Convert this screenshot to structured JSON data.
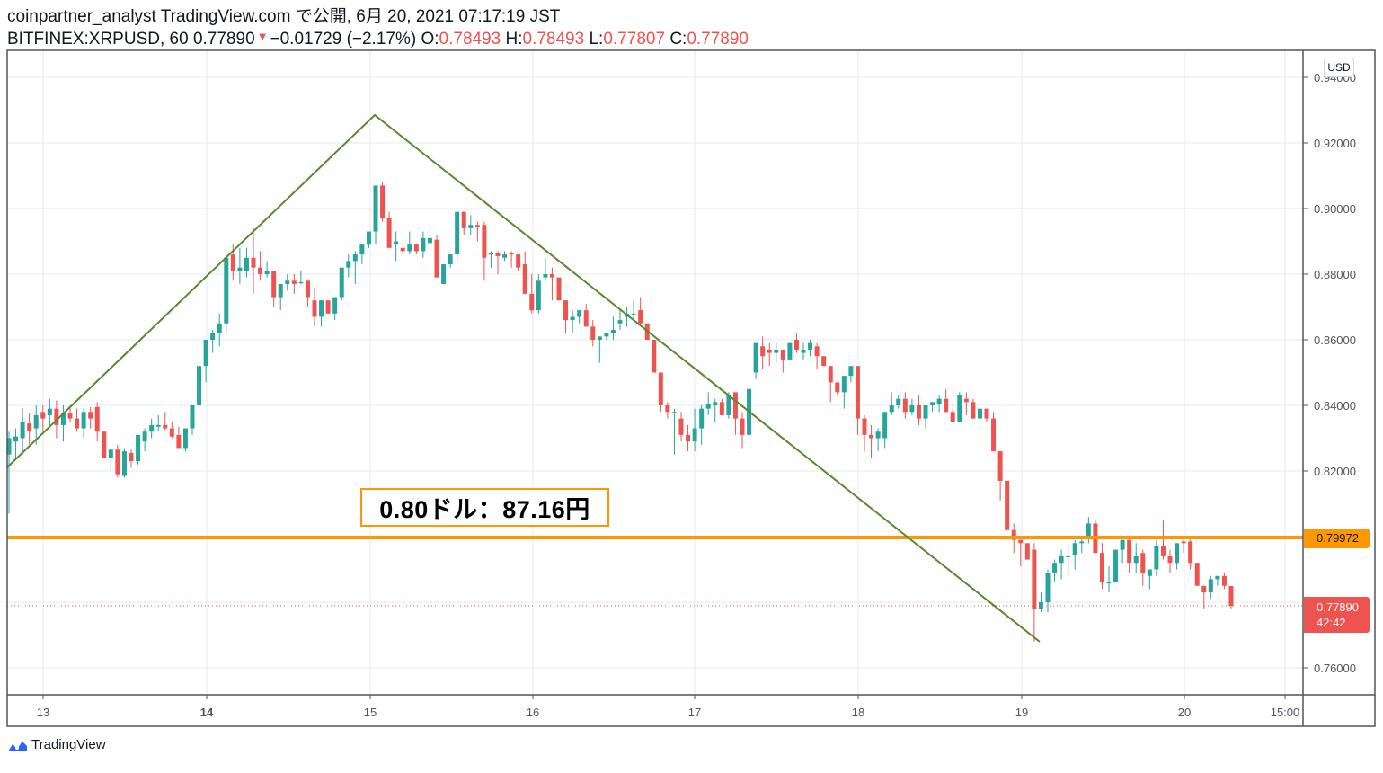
{
  "header": {
    "line1": "coinpartner_analyst TradingView.com で公開, 6月 20, 2021 07:17:19 JST",
    "symbol": "BITFINEX:XRPUSD, 60",
    "last_price": "0.77890",
    "change_arrow": "▼",
    "change": "−0.01729 (−2.17%)",
    "open_label": "O:",
    "open": "0.78493",
    "high_label": "H:",
    "high": "0.78493",
    "low_label": "L:",
    "low": "0.77807",
    "close_label": "C:",
    "close": "0.77890"
  },
  "price_axis": {
    "currency": "USD",
    "ticks": [
      "0.94000",
      "0.92000",
      "0.90000",
      "0.88000",
      "0.86000",
      "0.84000",
      "0.82000",
      "0.80000",
      "0.78000",
      "0.76000"
    ],
    "horizontal_line_label": "0.79972",
    "last_price_label": "0.77890",
    "countdown": "42:42"
  },
  "time_axis": {
    "ticks": [
      "13",
      "14",
      "15",
      "16",
      "17",
      "18",
      "19",
      "20",
      "15:00"
    ]
  },
  "annotation": {
    "text": "0.80ドル：87.16円"
  },
  "brand": {
    "name": "TradingView"
  },
  "colors": {
    "up": "#26a69a",
    "down": "#ef5350",
    "trendline": "#558b2f",
    "hline": "#ff9800",
    "grid": "#e6ebf2",
    "axis": "#50535e"
  },
  "chart_data": {
    "type": "candlestick",
    "title": "BITFINEX:XRPUSD, 60",
    "xlabel": "",
    "ylabel": "USD",
    "ylim": [
      0.7525,
      0.944
    ],
    "interval": "60 minutes",
    "x_ticks": [
      "13",
      "14",
      "15",
      "16",
      "17",
      "18",
      "19",
      "20",
      "15:00"
    ],
    "y_ticks": [
      0.76,
      0.78,
      0.8,
      0.82,
      0.84,
      0.86,
      0.88,
      0.9,
      0.92,
      0.94
    ],
    "grid": true,
    "horizontal_line": {
      "price": 0.79972,
      "color": "#ff9800"
    },
    "trendlines": [
      {
        "from": {
          "date": "12 23:00",
          "price": 0.8215
        },
        "to": {
          "date": "15 01:00",
          "price": 0.9287
        }
      },
      {
        "from": {
          "date": "15 01:00",
          "price": 0.9287
        },
        "to": {
          "date": "19 03:00",
          "price": 0.7675
        }
      }
    ],
    "annotation": {
      "text": "0.80ドル：87.16円"
    },
    "last": {
      "open": 0.78493,
      "high": 0.78493,
      "low": 0.77807,
      "close": 0.7789,
      "change": -0.01729,
      "change_pct": -2.17
    },
    "candles_ohlc": [
      [
        0.825,
        0.832,
        0.807,
        0.83
      ],
      [
        0.829,
        0.833,
        0.824,
        0.8305
      ],
      [
        0.83,
        0.839,
        0.825,
        0.835
      ],
      [
        0.8345,
        0.8375,
        0.828,
        0.832
      ],
      [
        0.833,
        0.84,
        0.828,
        0.837
      ],
      [
        0.838,
        0.84,
        0.832,
        0.836
      ],
      [
        0.837,
        0.842,
        0.834,
        0.839
      ],
      [
        0.839,
        0.8415,
        0.83,
        0.834
      ],
      [
        0.834,
        0.84,
        0.829,
        0.8375
      ],
      [
        0.8375,
        0.84,
        0.835,
        0.836
      ],
      [
        0.836,
        0.839,
        0.832,
        0.833
      ],
      [
        0.833,
        0.839,
        0.83,
        0.838
      ],
      [
        0.838,
        0.8395,
        0.833,
        0.836
      ],
      [
        0.8395,
        0.841,
        0.829,
        0.832
      ],
      [
        0.832,
        0.829,
        0.824,
        0.824
      ],
      [
        0.824,
        0.827,
        0.82,
        0.8265
      ],
      [
        0.8265,
        0.828,
        0.818,
        0.819
      ],
      [
        0.8185,
        0.827,
        0.818,
        0.826
      ],
      [
        0.8255,
        0.8265,
        0.821,
        0.823
      ],
      [
        0.823,
        0.831,
        0.822,
        0.831
      ],
      [
        0.829,
        0.833,
        0.826,
        0.832
      ],
      [
        0.832,
        0.836,
        0.83,
        0.834
      ],
      [
        0.8335,
        0.837,
        0.832,
        0.834
      ],
      [
        0.834,
        0.838,
        0.8325,
        0.833
      ],
      [
        0.833,
        0.835,
        0.83,
        0.8305
      ],
      [
        0.831,
        0.8335,
        0.828,
        0.827
      ],
      [
        0.827,
        0.832,
        0.826,
        0.833
      ],
      [
        0.833,
        0.84,
        0.831,
        0.84
      ],
      [
        0.84,
        0.847,
        0.839,
        0.852
      ],
      [
        0.852,
        0.859,
        0.847,
        0.86
      ],
      [
        0.86,
        0.863,
        0.856,
        0.862
      ],
      [
        0.862,
        0.868,
        0.858,
        0.865
      ],
      [
        0.865,
        0.88,
        0.862,
        0.885
      ],
      [
        0.886,
        0.889,
        0.878,
        0.881
      ],
      [
        0.881,
        0.888,
        0.877,
        0.882
      ],
      [
        0.881,
        0.888,
        0.879,
        0.885
      ],
      [
        0.885,
        0.894,
        0.874,
        0.882
      ],
      [
        0.882,
        0.887,
        0.878,
        0.88
      ],
      [
        0.88,
        0.884,
        0.879,
        0.881
      ],
      [
        0.881,
        0.881,
        0.87,
        0.873
      ],
      [
        0.873,
        0.876,
        0.869,
        0.877
      ],
      [
        0.877,
        0.88,
        0.875,
        0.878
      ],
      [
        0.878,
        0.88,
        0.874,
        0.877
      ],
      [
        0.8775,
        0.881,
        0.877,
        0.8775
      ],
      [
        0.878,
        0.877,
        0.87,
        0.873
      ],
      [
        0.872,
        0.876,
        0.864,
        0.867
      ],
      [
        0.867,
        0.872,
        0.864,
        0.872
      ],
      [
        0.872,
        0.872,
        0.87,
        0.868
      ],
      [
        0.868,
        0.873,
        0.866,
        0.873
      ],
      [
        0.873,
        0.882,
        0.872,
        0.882
      ],
      [
        0.882,
        0.886,
        0.879,
        0.884
      ],
      [
        0.884,
        0.887,
        0.877,
        0.886
      ],
      [
        0.886,
        0.889,
        0.883,
        0.889
      ],
      [
        0.889,
        0.892,
        0.888,
        0.893
      ],
      [
        0.893,
        0.896,
        0.889,
        0.907
      ],
      [
        0.907,
        0.908,
        0.896,
        0.897
      ],
      [
        0.897,
        0.899,
        0.889,
        0.888
      ],
      [
        0.889,
        0.893,
        0.884,
        0.89
      ],
      [
        0.888,
        0.888,
        0.886,
        0.887
      ],
      [
        0.887,
        0.893,
        0.886,
        0.889
      ],
      [
        0.889,
        0.886,
        0.886,
        0.887
      ],
      [
        0.887,
        0.893,
        0.885,
        0.891
      ],
      [
        0.8895,
        0.896,
        0.886,
        0.891
      ],
      [
        0.8905,
        0.892,
        0.879,
        0.879
      ],
      [
        0.877,
        0.88,
        0.878,
        0.883
      ],
      [
        0.883,
        0.886,
        0.882,
        0.886
      ],
      [
        0.886,
        0.899,
        0.884,
        0.899
      ],
      [
        0.899,
        0.899,
        0.892,
        0.894
      ],
      [
        0.894,
        0.898,
        0.892,
        0.895
      ],
      [
        0.895,
        0.896,
        0.89,
        0.8945
      ],
      [
        0.895,
        0.896,
        0.878,
        0.885
      ],
      [
        0.886,
        0.887,
        0.882,
        0.8865
      ],
      [
        0.8865,
        0.887,
        0.88,
        0.8855
      ],
      [
        0.885,
        0.887,
        0.884,
        0.886
      ],
      [
        0.8865,
        0.887,
        0.882,
        0.886
      ],
      [
        0.886,
        0.884,
        0.881,
        0.882
      ],
      [
        0.883,
        0.887,
        0.874,
        0.874
      ],
      [
        0.874,
        0.88,
        0.868,
        0.869
      ],
      [
        0.869,
        0.88,
        0.868,
        0.878
      ],
      [
        0.879,
        0.885,
        0.878,
        0.88
      ],
      [
        0.88,
        0.882,
        0.872,
        0.879
      ],
      [
        0.879,
        0.876,
        0.872,
        0.872
      ],
      [
        0.872,
        0.869,
        0.862,
        0.866
      ],
      [
        0.866,
        0.869,
        0.862,
        0.867
      ],
      [
        0.867,
        0.869,
        0.865,
        0.869
      ],
      [
        0.869,
        0.871,
        0.865,
        0.864
      ],
      [
        0.864,
        0.866,
        0.858,
        0.86
      ],
      [
        0.86,
        0.86,
        0.853,
        0.861
      ],
      [
        0.861,
        0.862,
        0.86,
        0.862
      ],
      [
        0.862,
        0.867,
        0.86,
        0.863
      ],
      [
        0.865,
        0.869,
        0.863,
        0.866
      ],
      [
        0.867,
        0.87,
        0.864,
        0.868
      ],
      [
        0.868,
        0.872,
        0.866,
        0.868
      ],
      [
        0.869,
        0.873,
        0.867,
        0.865
      ],
      [
        0.865,
        0.864,
        0.86,
        0.86
      ],
      [
        0.86,
        0.858,
        0.85,
        0.85
      ],
      [
        0.85,
        0.85,
        0.838,
        0.84
      ],
      [
        0.84,
        0.841,
        0.836,
        0.838
      ],
      [
        0.838,
        0.839,
        0.825,
        0.838
      ],
      [
        0.836,
        0.838,
        0.829,
        0.831
      ],
      [
        0.831,
        0.834,
        0.826,
        0.829
      ],
      [
        0.829,
        0.839,
        0.826,
        0.833
      ],
      [
        0.833,
        0.84,
        0.828,
        0.839
      ],
      [
        0.839,
        0.844,
        0.837,
        0.8405
      ],
      [
        0.84,
        0.842,
        0.835,
        0.841
      ],
      [
        0.841,
        0.842,
        0.837,
        0.837
      ],
      [
        0.837,
        0.844,
        0.836,
        0.843
      ],
      [
        0.844,
        0.843,
        0.831,
        0.836
      ],
      [
        0.836,
        0.838,
        0.827,
        0.831
      ],
      [
        0.831,
        0.84,
        0.83,
        0.845
      ],
      [
        0.85,
        0.859,
        0.848,
        0.859
      ],
      [
        0.858,
        0.861,
        0.851,
        0.855
      ],
      [
        0.857,
        0.859,
        0.852,
        0.856
      ],
      [
        0.856,
        0.859,
        0.853,
        0.857
      ],
      [
        0.857,
        0.857,
        0.85,
        0.854
      ],
      [
        0.854,
        0.859,
        0.854,
        0.859
      ],
      [
        0.86,
        0.862,
        0.856,
        0.857
      ],
      [
        0.856,
        0.859,
        0.854,
        0.857
      ],
      [
        0.857,
        0.86,
        0.855,
        0.859
      ],
      [
        0.858,
        0.859,
        0.851,
        0.855
      ],
      [
        0.855,
        0.853,
        0.852,
        0.852
      ],
      [
        0.852,
        0.847,
        0.841,
        0.847
      ],
      [
        0.847,
        0.845,
        0.843,
        0.844
      ],
      [
        0.844,
        0.849,
        0.839,
        0.849
      ],
      [
        0.849,
        0.851,
        0.847,
        0.852
      ],
      [
        0.852,
        0.85,
        0.831,
        0.836
      ],
      [
        0.836,
        0.837,
        0.826,
        0.831
      ],
      [
        0.831,
        0.834,
        0.824,
        0.83
      ],
      [
        0.83,
        0.833,
        0.826,
        0.832
      ],
      [
        0.83,
        0.837,
        0.827,
        0.838
      ],
      [
        0.838,
        0.844,
        0.837,
        0.84
      ],
      [
        0.84,
        0.843,
        0.839,
        0.842
      ],
      [
        0.842,
        0.844,
        0.836,
        0.838
      ],
      [
        0.838,
        0.842,
        0.837,
        0.84
      ],
      [
        0.84,
        0.843,
        0.834,
        0.836
      ],
      [
        0.836,
        0.839,
        0.833,
        0.84
      ],
      [
        0.84,
        0.841,
        0.838,
        0.841
      ],
      [
        0.8405,
        0.843,
        0.838,
        0.842
      ],
      [
        0.842,
        0.845,
        0.838,
        0.838
      ],
      [
        0.838,
        0.839,
        0.835,
        0.835
      ],
      [
        0.835,
        0.844,
        0.835,
        0.843
      ],
      [
        0.842,
        0.844,
        0.837,
        0.841
      ],
      [
        0.841,
        0.842,
        0.836,
        0.836
      ],
      [
        0.836,
        0.839,
        0.832,
        0.839
      ],
      [
        0.839,
        0.839,
        0.835,
        0.836
      ],
      [
        0.836,
        0.838,
        0.826,
        0.826
      ],
      [
        0.826,
        0.824,
        0.811,
        0.817
      ],
      [
        0.817,
        0.815,
        0.802,
        0.802
      ],
      [
        0.802,
        0.804,
        0.795,
        0.799
      ],
      [
        0.799,
        0.797,
        0.791,
        0.798
      ],
      [
        0.798,
        0.796,
        0.793,
        0.793
      ],
      [
        0.796,
        0.798,
        0.768,
        0.778
      ],
      [
        0.778,
        0.783,
        0.777,
        0.78
      ],
      [
        0.78,
        0.79,
        0.777,
        0.789
      ],
      [
        0.789,
        0.793,
        0.786,
        0.792
      ],
      [
        0.792,
        0.796,
        0.787,
        0.794
      ],
      [
        0.794,
        0.797,
        0.788,
        0.794
      ],
      [
        0.7945,
        0.799,
        0.79,
        0.798
      ],
      [
        0.798,
        0.8,
        0.795,
        0.7985
      ],
      [
        0.7995,
        0.806,
        0.798,
        0.804
      ],
      [
        0.804,
        0.805,
        0.795,
        0.795
      ],
      [
        0.795,
        0.798,
        0.784,
        0.786
      ],
      [
        0.786,
        0.791,
        0.783,
        0.786
      ],
      [
        0.786,
        0.796,
        0.786,
        0.796
      ],
      [
        0.796,
        0.799,
        0.792,
        0.799
      ],
      [
        0.799,
        0.799,
        0.789,
        0.792
      ],
      [
        0.792,
        0.798,
        0.789,
        0.794
      ],
      [
        0.795,
        0.796,
        0.785,
        0.789
      ],
      [
        0.788,
        0.79,
        0.784,
        0.79
      ],
      [
        0.79,
        0.799,
        0.788,
        0.797
      ],
      [
        0.797,
        0.805,
        0.793,
        0.794
      ],
      [
        0.794,
        0.796,
        0.789,
        0.792
      ],
      [
        0.792,
        0.798,
        0.79,
        0.798
      ],
      [
        0.7985,
        0.799,
        0.795,
        0.798
      ],
      [
        0.7985,
        0.799,
        0.79,
        0.792
      ],
      [
        0.792,
        0.792,
        0.785,
        0.785
      ],
      [
        0.785,
        0.785,
        0.778,
        0.783
      ],
      [
        0.783,
        0.788,
        0.781,
        0.787
      ],
      [
        0.787,
        0.788,
        0.785,
        0.788
      ],
      [
        0.788,
        0.789,
        0.784,
        0.785
      ],
      [
        0.7849,
        0.7849,
        0.7781,
        0.7789
      ]
    ]
  }
}
